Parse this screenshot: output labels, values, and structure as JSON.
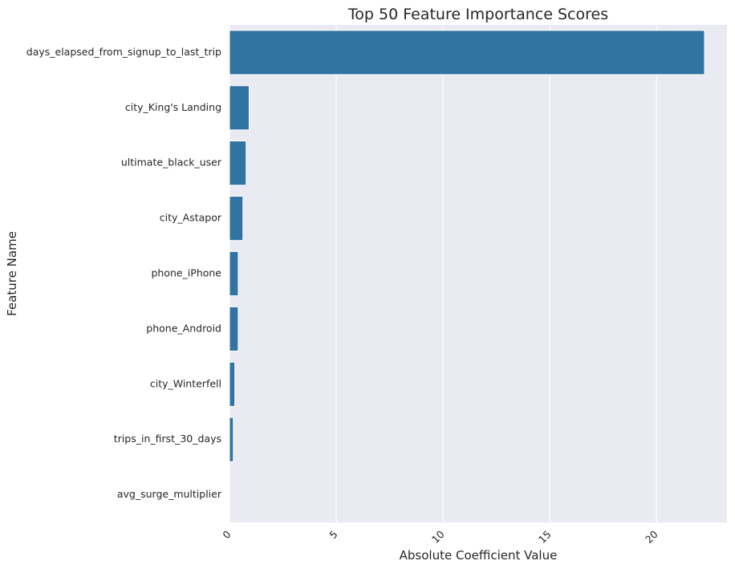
{
  "chart_data": {
    "type": "bar",
    "orientation": "horizontal",
    "title": "Top 50 Feature Importance Scores",
    "xlabel": "Absolute Coefficient Value",
    "ylabel": "Feature Name",
    "categories": [
      "days_elapsed_from_signup_to_last_trip",
      "city_King's Landing",
      "ultimate_black_user",
      "city_Astapor",
      "phone_iPhone",
      "phone_Android",
      "city_Winterfell",
      "trips_in_first_30_days",
      "avg_surge_multiplier"
    ],
    "values": [
      22.25,
      0.92,
      0.78,
      0.63,
      0.41,
      0.41,
      0.25,
      0.18,
      0.0
    ],
    "xlim": [
      0,
      23.3
    ],
    "xticks": [
      0,
      5,
      10,
      15,
      20
    ],
    "xtick_rotation": 45,
    "grid": true,
    "bar_color": "#3274a1",
    "background_color": "#eaeaf2",
    "grid_color": "#ffffff"
  }
}
